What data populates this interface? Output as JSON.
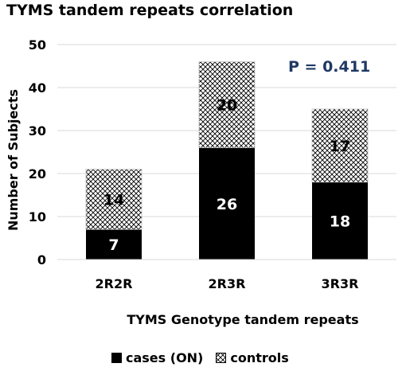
{
  "chart_data": {
    "type": "bar",
    "stacked": true,
    "title": "TYMS tandem repeats correlation",
    "xlabel": "TYMS Genotype tandem repeats",
    "ylabel": "Number of Subjects",
    "categories": [
      "2R2R",
      "2R3R",
      "3R3R"
    ],
    "series": [
      {
        "name": "cases (ON)",
        "values": [
          7,
          26,
          18
        ],
        "color": "#000000",
        "pattern": "solid"
      },
      {
        "name": "controls",
        "values": [
          14,
          20,
          17
        ],
        "color": "#000000",
        "pattern": "crosshatch"
      }
    ],
    "ylim": [
      0,
      50
    ],
    "yticks": [
      0,
      10,
      20,
      30,
      40,
      50
    ],
    "grid": true,
    "legend_position": "bottom",
    "annotation": "P = 0.411",
    "annotation_color": "#1f3864"
  }
}
